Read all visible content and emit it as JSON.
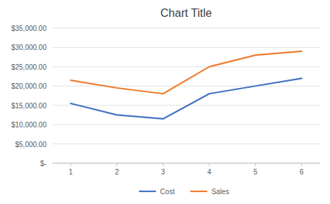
{
  "chart_data": {
    "type": "line",
    "title": "Chart Title",
    "x": [
      1,
      2,
      3,
      4,
      5,
      6
    ],
    "series": [
      {
        "name": "Cost",
        "color": "#4472C4",
        "values": [
          15500,
          12500,
          11500,
          18000,
          20000,
          22000
        ]
      },
      {
        "name": "Sales",
        "color": "#ED7D31",
        "values": [
          21500,
          19500,
          18000,
          25000,
          28000,
          29000
        ]
      }
    ],
    "xlim": [
      0.6,
      6.4
    ],
    "xticks": [
      1,
      2,
      3,
      4,
      5,
      6
    ],
    "ylim": [
      0,
      35000
    ],
    "yticks": [
      {
        "value": 0,
        "label": "$-"
      },
      {
        "value": 5000,
        "label": "$5,000.00"
      },
      {
        "value": 10000,
        "label": "$10,000.00"
      },
      {
        "value": 15000,
        "label": "$15,000.00"
      },
      {
        "value": 20000,
        "label": "$20,000.00"
      },
      {
        "value": 25000,
        "label": "$25,000.00"
      },
      {
        "value": 30000,
        "label": "$30,000.00"
      },
      {
        "value": 35000,
        "label": "$35,000.00"
      }
    ],
    "grid": true,
    "legend": "bottom"
  }
}
